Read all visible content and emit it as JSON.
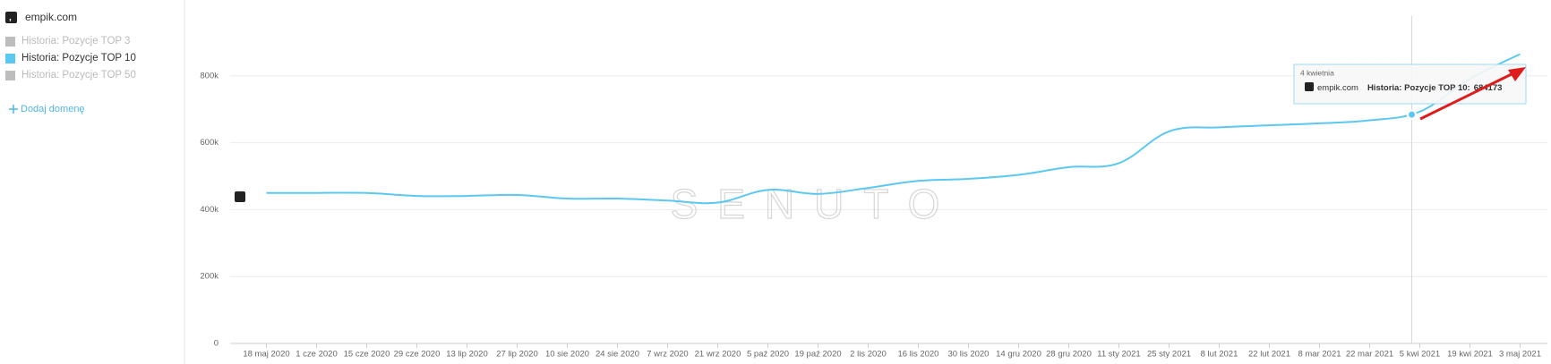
{
  "sidebar": {
    "domain": "empik.com",
    "add_domain": "Dodaj domenę"
  },
  "chart_data": {
    "type": "line",
    "categories": [
      "18 maj 2020",
      "1 cze 2020",
      "15 cze 2020",
      "29 cze 2020",
      "13 lip 2020",
      "27 lip 2020",
      "10 sie 2020",
      "24 sie 2020",
      "7 wrz 2020",
      "21 wrz 2020",
      "5 paź 2020",
      "19 paź 2020",
      "2 lis 2020",
      "16 lis 2020",
      "30 lis 2020",
      "14 gru 2020",
      "28 gru 2020",
      "11 sty 2021",
      "25 sty 2021",
      "8 lut 2021",
      "22 lut 2021",
      "8 mar 2021",
      "22 mar 2021",
      "5 kwi 2021",
      "19 kwi 2021",
      "3 maj 2021"
    ],
    "series": [
      {
        "name": "Historia: Pozycje TOP 10",
        "color": "#5bc8f2",
        "values": [
          450000,
          450000,
          450000,
          441000,
          441000,
          444000,
          433000,
          433000,
          427000,
          421000,
          459000,
          447000,
          465000,
          486000,
          492000,
          504000,
          527000,
          539000,
          634000,
          646000,
          652000,
          658000,
          667000,
          693000,
          791000,
          865000
        ]
      }
    ],
    "inactive_series": [
      {
        "name": "Historia: Pozycje TOP 3",
        "color": "#bdbdbd"
      },
      {
        "name": "Historia: Pozycje TOP 50",
        "color": "#bdbdbd"
      }
    ],
    "ylim": [
      0,
      1000000
    ],
    "yticks": [
      0,
      {
        "value": 200000,
        "label": "200k"
      },
      {
        "value": 400000,
        "label": "400k"
      },
      {
        "value": 600000,
        "label": "600k"
      },
      {
        "value": 800000,
        "label": "800k"
      }
    ],
    "grid": true,
    "watermark": "SENUTO",
    "tooltip": {
      "date": "4 kwietnia",
      "domain": "empik.com",
      "label": "Historia: Pozycje TOP 10:",
      "value": 684173
    }
  }
}
